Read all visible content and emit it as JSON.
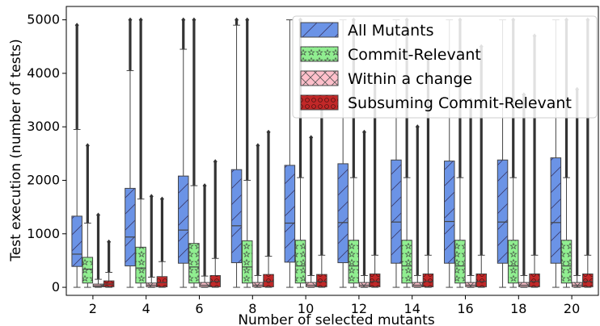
{
  "chart_data": {
    "type": "box",
    "xlabel": "Number of selected mutants",
    "ylabel": "Test execution (number of tests)",
    "ylim": [
      -150,
      5250
    ],
    "yticks": [
      0,
      1000,
      2000,
      3000,
      4000,
      5000
    ],
    "categories": [
      "2",
      "4",
      "6",
      "8",
      "10",
      "12",
      "14",
      "16",
      "18",
      "20"
    ],
    "legend_position": "top-right",
    "series": [
      {
        "name": "All Mutants",
        "color": "#6b93e6",
        "hatch": "diagonal",
        "boxes": [
          {
            "whisker_low": 0,
            "q1": 390,
            "median": 620,
            "q3": 1330,
            "whisker_high": 2950,
            "outlier_max": 4900
          },
          {
            "whisker_low": 0,
            "q1": 400,
            "median": 940,
            "q3": 1850,
            "whisker_high": 4050,
            "outlier_max": 5000
          },
          {
            "whisker_low": 0,
            "q1": 450,
            "median": 1070,
            "q3": 2080,
            "whisker_high": 4450,
            "outlier_max": 5000
          },
          {
            "whisker_low": 0,
            "q1": 460,
            "median": 1150,
            "q3": 2200,
            "whisker_high": 4900,
            "outlier_max": 5000
          },
          {
            "whisker_low": 0,
            "q1": 470,
            "median": 1200,
            "q3": 2280,
            "whisker_high": 5000,
            "outlier_max": 5000
          },
          {
            "whisker_low": 0,
            "q1": 460,
            "median": 1210,
            "q3": 2310,
            "whisker_high": 5000,
            "outlier_max": 5000
          },
          {
            "whisker_low": 0,
            "q1": 450,
            "median": 1220,
            "q3": 2380,
            "whisker_high": 5000,
            "outlier_max": 5000
          },
          {
            "whisker_low": 0,
            "q1": 450,
            "median": 1230,
            "q3": 2360,
            "whisker_high": 5000,
            "outlier_max": 5000
          },
          {
            "whisker_low": 0,
            "q1": 450,
            "median": 1220,
            "q3": 2380,
            "whisker_high": 5000,
            "outlier_max": 5000
          },
          {
            "whisker_low": 0,
            "q1": 450,
            "median": 1210,
            "q3": 2420,
            "whisker_high": 5000,
            "outlier_max": 5000
          }
        ]
      },
      {
        "name": "Commit-Relevant",
        "color": "#90ee90",
        "hatch": "stars",
        "boxes": [
          {
            "whisker_low": 0,
            "q1": 80,
            "median": 340,
            "q3": 560,
            "whisker_high": 1200,
            "outlier_max": 2650
          },
          {
            "whisker_low": 0,
            "q1": 80,
            "median": 360,
            "q3": 750,
            "whisker_high": 1650,
            "outlier_max": 5000
          },
          {
            "whisker_low": 0,
            "q1": 80,
            "median": 380,
            "q3": 820,
            "whisker_high": 1900,
            "outlier_max": 5000
          },
          {
            "whisker_low": 0,
            "q1": 80,
            "median": 380,
            "q3": 870,
            "whisker_high": 2000,
            "outlier_max": 5000
          },
          {
            "whisker_low": 0,
            "q1": 80,
            "median": 400,
            "q3": 880,
            "whisker_high": 2050,
            "outlier_max": 5000
          },
          {
            "whisker_low": 0,
            "q1": 80,
            "median": 400,
            "q3": 880,
            "whisker_high": 2050,
            "outlier_max": 5000
          },
          {
            "whisker_low": 0,
            "q1": 80,
            "median": 400,
            "q3": 880,
            "whisker_high": 2050,
            "outlier_max": 5000
          },
          {
            "whisker_low": 0,
            "q1": 80,
            "median": 400,
            "q3": 880,
            "whisker_high": 2050,
            "outlier_max": 5000
          },
          {
            "whisker_low": 0,
            "q1": 80,
            "median": 400,
            "q3": 880,
            "whisker_high": 2050,
            "outlier_max": 5000
          },
          {
            "whisker_low": 0,
            "q1": 80,
            "median": 400,
            "q3": 880,
            "whisker_high": 2050,
            "outlier_max": 5000
          }
        ]
      },
      {
        "name": "Within a change",
        "color": "#ffc0cb",
        "hatch": "cross",
        "boxes": [
          {
            "whisker_low": 0,
            "q1": 10,
            "median": 30,
            "q3": 60,
            "whisker_high": 150,
            "outlier_max": 1350
          },
          {
            "whisker_low": 0,
            "q1": 10,
            "median": 40,
            "q3": 80,
            "whisker_high": 190,
            "outlier_max": 1700
          },
          {
            "whisker_low": 0,
            "q1": 10,
            "median": 40,
            "q3": 90,
            "whisker_high": 210,
            "outlier_max": 1900
          },
          {
            "whisker_low": 0,
            "q1": 10,
            "median": 40,
            "q3": 90,
            "whisker_high": 220,
            "outlier_max": 2650
          },
          {
            "whisker_low": 0,
            "q1": 10,
            "median": 40,
            "q3": 90,
            "whisker_high": 220,
            "outlier_max": 2800
          },
          {
            "whisker_low": 0,
            "q1": 10,
            "median": 40,
            "q3": 90,
            "whisker_high": 220,
            "outlier_max": 2900
          },
          {
            "whisker_low": 0,
            "q1": 10,
            "median": 40,
            "q3": 90,
            "whisker_high": 220,
            "outlier_max": 3000
          },
          {
            "whisker_low": 0,
            "q1": 10,
            "median": 40,
            "q3": 90,
            "whisker_high": 220,
            "outlier_max": 3500
          },
          {
            "whisker_low": 0,
            "q1": 10,
            "median": 40,
            "q3": 90,
            "whisker_high": 220,
            "outlier_max": 3600
          },
          {
            "whisker_low": 0,
            "q1": 10,
            "median": 40,
            "q3": 90,
            "whisker_high": 220,
            "outlier_max": 3700
          }
        ]
      },
      {
        "name": "Subsuming Commit-Relevant",
        "color": "#c22828",
        "hatch": "circles",
        "boxes": [
          {
            "whisker_low": 0,
            "q1": 10,
            "median": 60,
            "q3": 120,
            "whisker_high": 280,
            "outlier_max": 850
          },
          {
            "whisker_low": 0,
            "q1": 10,
            "median": 90,
            "q3": 200,
            "whisker_high": 480,
            "outlier_max": 1650
          },
          {
            "whisker_low": 0,
            "q1": 10,
            "median": 110,
            "q3": 220,
            "whisker_high": 540,
            "outlier_max": 2350
          },
          {
            "whisker_low": 0,
            "q1": 10,
            "median": 110,
            "q3": 240,
            "whisker_high": 580,
            "outlier_max": 2900
          },
          {
            "whisker_low": 0,
            "q1": 10,
            "median": 110,
            "q3": 240,
            "whisker_high": 600,
            "outlier_max": 3400
          },
          {
            "whisker_low": 0,
            "q1": 10,
            "median": 110,
            "q3": 250,
            "whisker_high": 600,
            "outlier_max": 3900
          },
          {
            "whisker_low": 0,
            "q1": 10,
            "median": 110,
            "q3": 250,
            "whisker_high": 600,
            "outlier_max": 4300
          },
          {
            "whisker_low": 0,
            "q1": 10,
            "median": 110,
            "q3": 250,
            "whisker_high": 600,
            "outlier_max": 4500
          },
          {
            "whisker_low": 0,
            "q1": 10,
            "median": 110,
            "q3": 250,
            "whisker_high": 600,
            "outlier_max": 4700
          },
          {
            "whisker_low": 0,
            "q1": 10,
            "median": 110,
            "q3": 250,
            "whisker_high": 600,
            "outlier_max": 5000
          }
        ]
      }
    ]
  }
}
